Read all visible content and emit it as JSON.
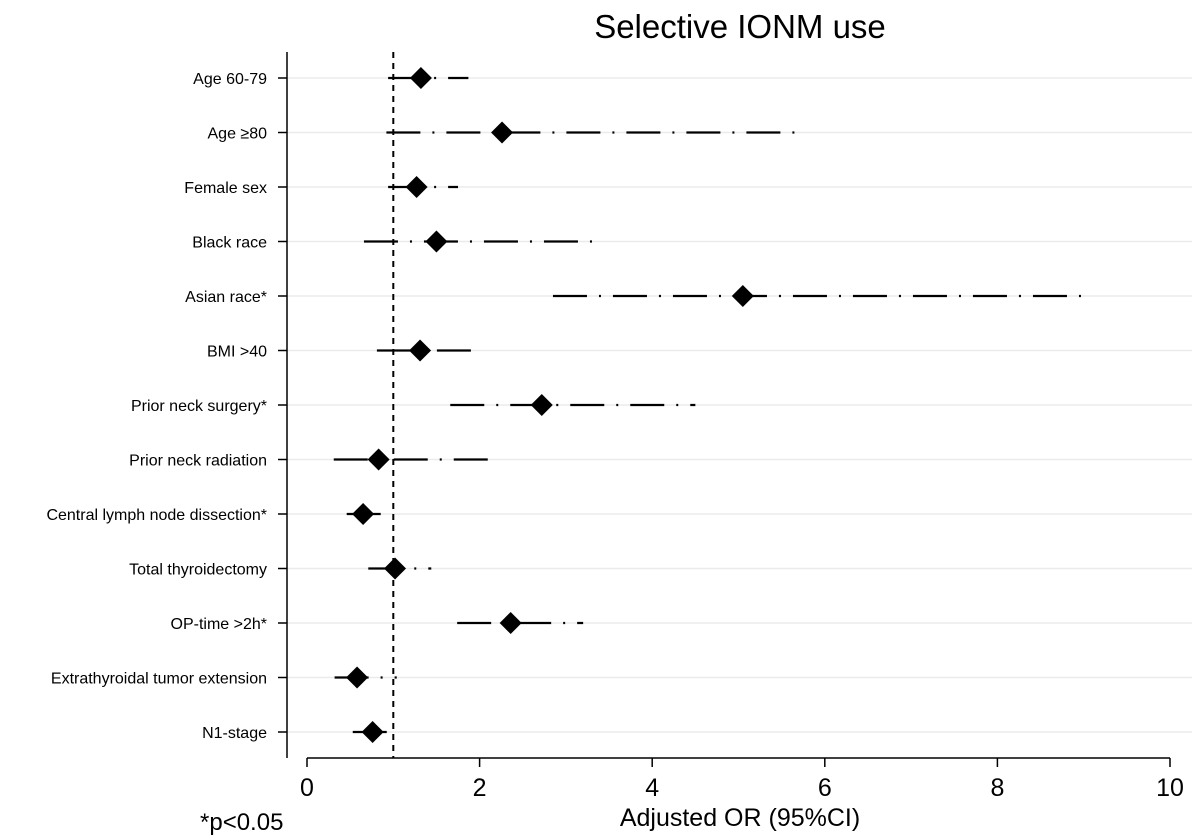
{
  "chart_data": {
    "type": "forest",
    "title": "Selective IONM use",
    "xlabel": "Adjusted OR (95%CI)",
    "footnote": "*p<0.05",
    "xlim": [
      0,
      10
    ],
    "xticks": [
      0,
      2,
      4,
      6,
      8,
      10
    ],
    "reference_line": 1,
    "grid": true,
    "rows": [
      {
        "label": "Age 60-79",
        "or": 1.32,
        "lower": 0.94,
        "upper": 1.87
      },
      {
        "label": "Age ≥80",
        "or": 2.26,
        "lower": 0.92,
        "upper": 5.66
      },
      {
        "label": "Female sex",
        "or": 1.27,
        "lower": 0.94,
        "upper": 1.75
      },
      {
        "label": "Black race",
        "or": 1.5,
        "lower": 0.66,
        "upper": 3.42
      },
      {
        "label": "Asian race*",
        "or": 5.05,
        "lower": 2.85,
        "upper": 8.98
      },
      {
        "label": "BMI >40",
        "or": 1.31,
        "lower": 0.81,
        "upper": 2.0
      },
      {
        "label": "Prior neck surgery*",
        "or": 2.72,
        "lower": 1.66,
        "upper": 4.5
      },
      {
        "label": "Prior neck radiation",
        "or": 0.83,
        "lower": 0.31,
        "upper": 2.16
      },
      {
        "label": "Central lymph node dissection*",
        "or": 0.65,
        "lower": 0.46,
        "upper": 0.87
      },
      {
        "label": "Total thyroidectomy",
        "or": 1.02,
        "lower": 0.71,
        "upper": 1.44
      },
      {
        "label": "OP-time >2h*",
        "or": 2.36,
        "lower": 1.74,
        "upper": 3.2
      },
      {
        "label": "Extrathyroidal tumor extension",
        "or": 0.58,
        "lower": 0.32,
        "upper": 1.04
      },
      {
        "label": "N1-stage",
        "or": 0.76,
        "lower": 0.53,
        "upper": 1.0
      }
    ]
  }
}
